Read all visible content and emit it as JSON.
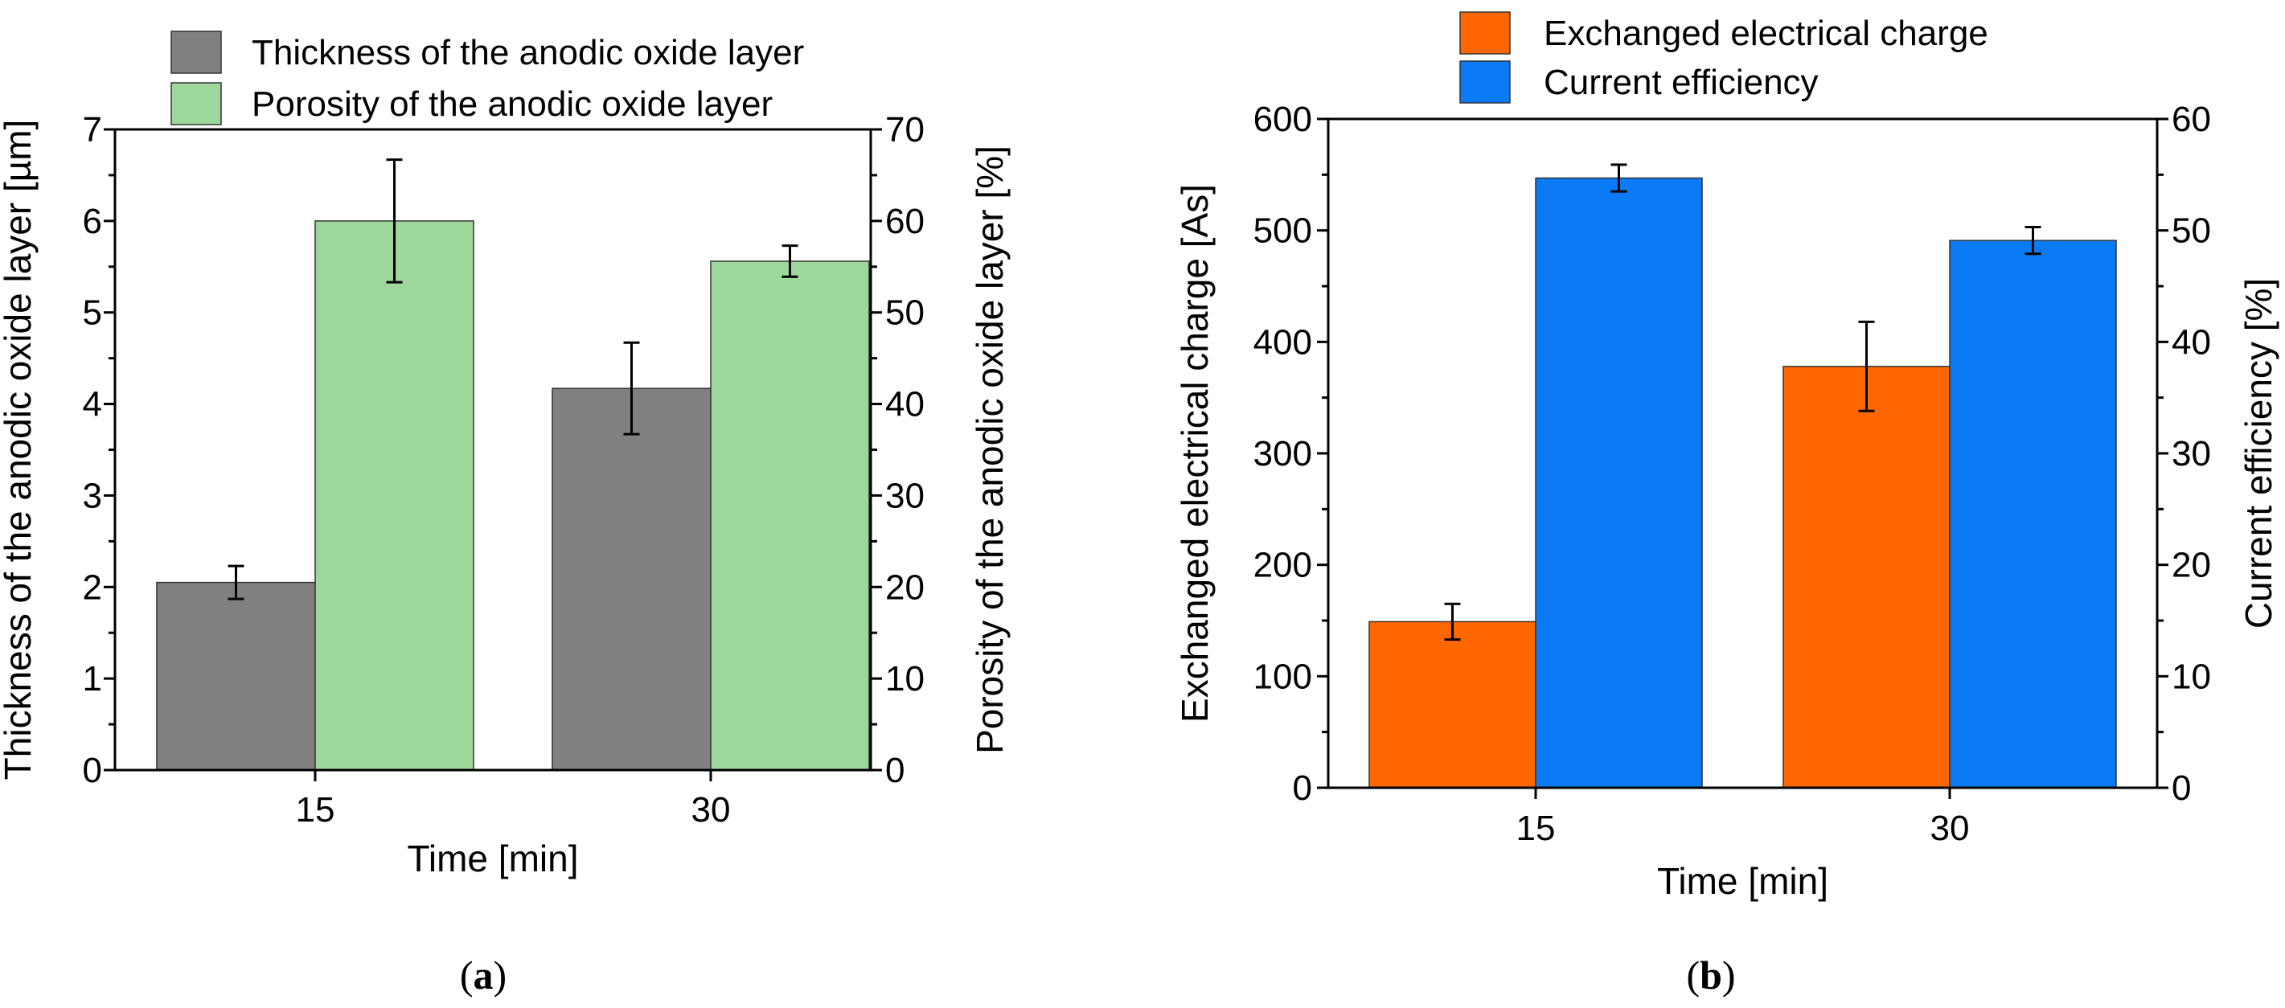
{
  "chart_data": [
    {
      "type": "bar",
      "panel_label": "a",
      "categories": [
        "15",
        "30"
      ],
      "xlabel": "Time [min]",
      "left_axis": {
        "label": "Thickness of the anodic oxide layer [µm]",
        "range": [
          0,
          7
        ],
        "ticks": [
          0,
          1,
          2,
          3,
          4,
          5,
          6,
          7
        ]
      },
      "right_axis": {
        "label": "Porosity of the anodic oxide layer [%]",
        "range": [
          0,
          70
        ],
        "ticks": [
          0,
          10,
          20,
          30,
          40,
          50,
          60,
          70
        ]
      },
      "legend_position": "top",
      "series": [
        {
          "name": "Thickness of the anodic oxide layer",
          "axis": "left",
          "color": "#808080",
          "values": [
            2.05,
            4.17
          ],
          "errors": [
            0.18,
            0.5
          ]
        },
        {
          "name": "Porosity of the anodic oxide layer",
          "axis": "right",
          "color": "#9ED79C",
          "values": [
            60.0,
            55.6
          ],
          "errors": [
            6.7,
            1.7
          ]
        }
      ]
    },
    {
      "type": "bar",
      "panel_label": "b",
      "categories": [
        "15",
        "30"
      ],
      "xlabel": "Time [min]",
      "left_axis": {
        "label": "Exchanged electrical charge [As]",
        "range": [
          0,
          600
        ],
        "ticks": [
          0,
          100,
          200,
          300,
          400,
          500,
          600
        ]
      },
      "right_axis": {
        "label": "Current efficiency [%]",
        "range": [
          0,
          60
        ],
        "ticks": [
          0,
          10,
          20,
          30,
          40,
          50,
          60
        ]
      },
      "legend_position": "top",
      "series": [
        {
          "name": "Exchanged electrical charge",
          "axis": "left",
          "color": "#FF6600",
          "values": [
            149,
            378
          ],
          "errors": [
            16,
            40
          ]
        },
        {
          "name": "Current efficiency",
          "axis": "right",
          "color": "#0B7BF5",
          "values": [
            54.7,
            49.1
          ],
          "errors": [
            1.2,
            1.2
          ]
        }
      ]
    }
  ]
}
